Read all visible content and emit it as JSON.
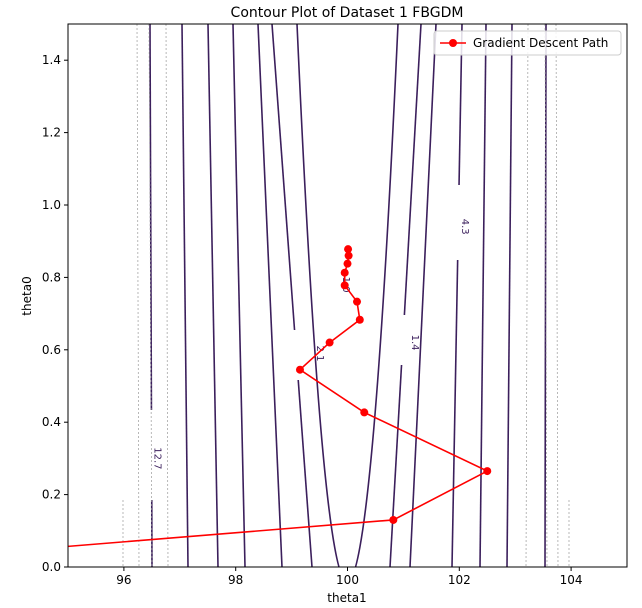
{
  "chart_data": {
    "type": "line",
    "title": "Contour Plot of Dataset 1 FBGDM",
    "xlabel": "theta1",
    "ylabel": "theta0",
    "xlim": [
      95,
      105
    ],
    "ylim": [
      0,
      1.5
    ],
    "xticks": [
      96,
      98,
      100,
      102,
      104
    ],
    "yticks": [
      0.0,
      0.2,
      0.4,
      0.6,
      0.8,
      1.0,
      1.2,
      1.4
    ],
    "grid": false,
    "legend_position": "top-right",
    "contour_color": "#3b1f5c",
    "faint_contour_color": "#9a9a9a",
    "contour_labels": [
      {
        "text": "1.0",
        "x": 99.92,
        "y": 0.78
      },
      {
        "text": "2.1",
        "x": 99.45,
        "y": 0.59
      },
      {
        "text": "1.4",
        "x": 101.15,
        "y": 0.62
      },
      {
        "text": "4.3",
        "x": 102.05,
        "y": 0.94
      },
      {
        "text": "12.7",
        "x": 96.55,
        "y": 0.3
      }
    ],
    "series": [
      {
        "name": "Gradient Descent Path",
        "color": "#ff0000",
        "x": [
          95.0,
          100.82,
          102.5,
          100.3,
          99.15,
          99.68,
          100.22,
          100.17,
          99.95,
          99.95,
          100.0,
          100.02,
          100.01
        ],
        "y": [
          0.057,
          0.13,
          0.265,
          0.427,
          0.545,
          0.62,
          0.683,
          0.733,
          0.778,
          0.813,
          0.838,
          0.86,
          0.878
        ],
        "markers_from_index": 1
      }
    ]
  }
}
